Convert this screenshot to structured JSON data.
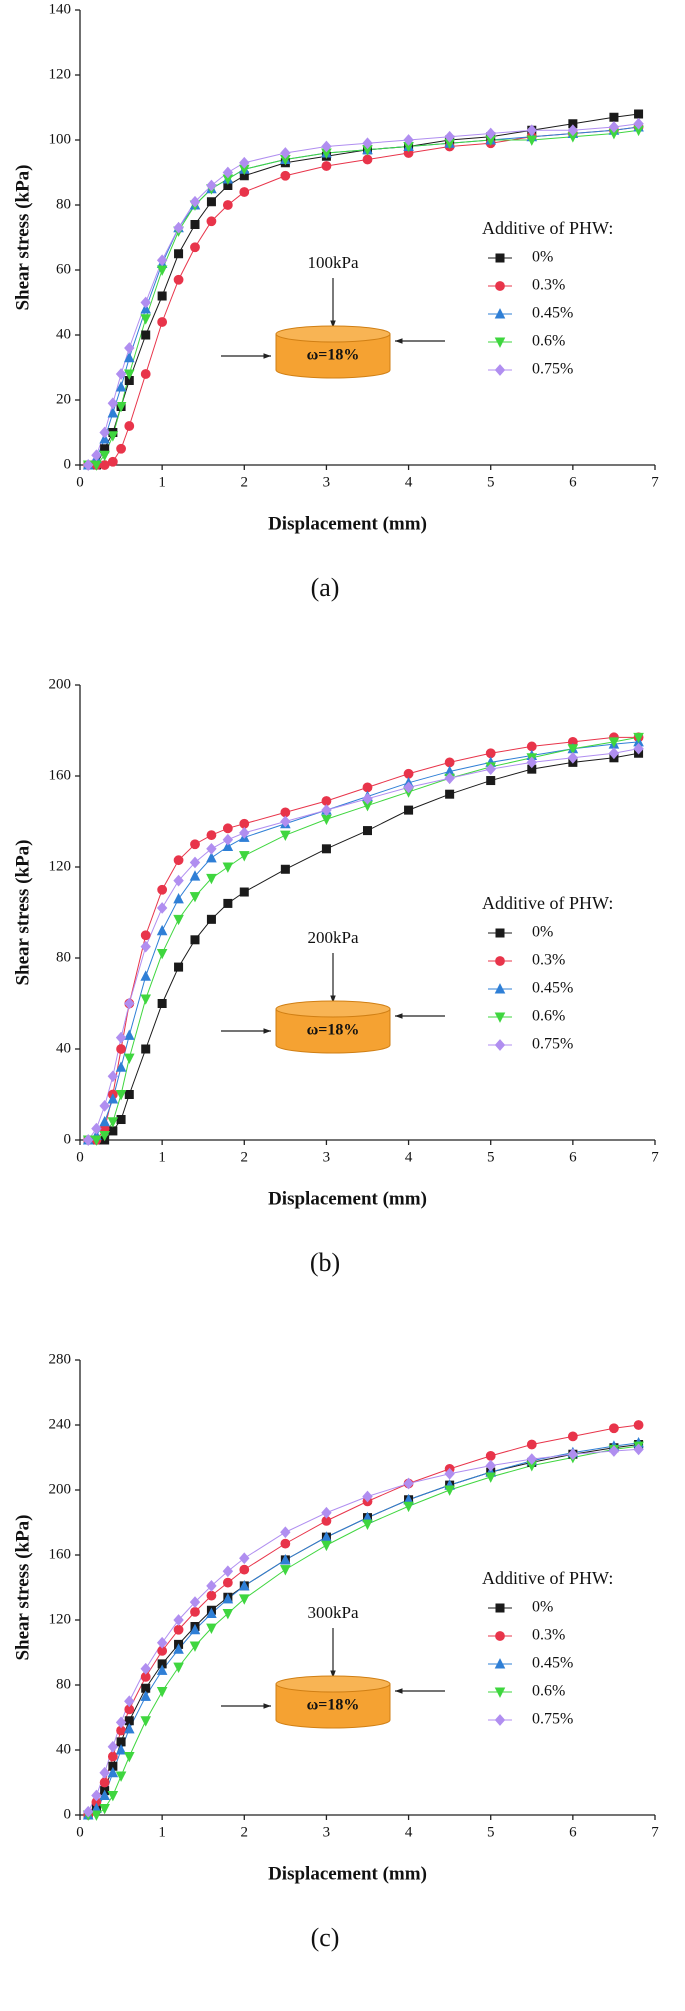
{
  "chart_data": [
    {
      "type": "line",
      "xlabel": "Displacement (mm)",
      "ylabel": "Shear stress (kPa)",
      "caption": "(a)",
      "legend_title": "Additive of PHW:",
      "load_label": "100kPa",
      "moisture_label": "ω=18%",
      "xlim": [
        0,
        7
      ],
      "xticks": [
        0,
        1,
        2,
        3,
        4,
        5,
        6,
        7
      ],
      "ylim": [
        0,
        140
      ],
      "yticks": [
        0,
        20,
        40,
        60,
        80,
        100,
        120,
        140
      ],
      "x": [
        0.1,
        0.2,
        0.3,
        0.4,
        0.5,
        0.6,
        0.8,
        1.0,
        1.2,
        1.4,
        1.6,
        1.8,
        2,
        2.5,
        3,
        3.5,
        4,
        4.5,
        5,
        5.5,
        6,
        6.5,
        6.8
      ],
      "series": [
        {
          "name": "0%",
          "color": "#1a1a1a",
          "marker": "square",
          "values": [
            0,
            0,
            5,
            10,
            18,
            26,
            40,
            52,
            65,
            74,
            81,
            86,
            89,
            93,
            95,
            97,
            98,
            100,
            101,
            103,
            105,
            107,
            108
          ]
        },
        {
          "name": "0.3%",
          "color": "#e8344a",
          "marker": "circle",
          "values": [
            0,
            0,
            0,
            1,
            5,
            12,
            28,
            44,
            57,
            67,
            75,
            80,
            84,
            89,
            92,
            94,
            96,
            98,
            99,
            101,
            102,
            103,
            104
          ]
        },
        {
          "name": "0.45%",
          "color": "#2f7fd6",
          "marker": "triangle",
          "values": [
            0,
            2,
            8,
            16,
            24,
            33,
            48,
            62,
            73,
            80,
            85,
            88,
            91,
            94,
            96,
            97,
            98,
            99,
            100,
            101,
            102,
            103,
            104
          ]
        },
        {
          "name": "0.6%",
          "color": "#3fd63f",
          "marker": "triangle-down",
          "values": [
            0,
            0,
            3,
            9,
            18,
            28,
            45,
            60,
            72,
            80,
            85,
            88,
            91,
            94,
            96,
            97,
            98,
            99,
            100,
            100,
            101,
            102,
            103
          ]
        },
        {
          "name": "0.75%",
          "color": "#b08ef0",
          "marker": "diamond",
          "values": [
            0,
            3,
            10,
            19,
            28,
            36,
            50,
            63,
            73,
            81,
            86,
            90,
            93,
            96,
            98,
            99,
            100,
            101,
            102,
            103,
            103,
            104,
            105
          ]
        }
      ]
    },
    {
      "type": "line",
      "xlabel": "Displacement (mm)",
      "ylabel": "Shear stress (kPa)",
      "caption": "(b)",
      "legend_title": "Additive of PHW:",
      "load_label": "200kPa",
      "moisture_label": "ω=18%",
      "xlim": [
        0,
        7
      ],
      "xticks": [
        0,
        1,
        2,
        3,
        4,
        5,
        6,
        7
      ],
      "ylim": [
        0,
        200
      ],
      "yticks": [
        0,
        40,
        80,
        120,
        160,
        200
      ],
      "x": [
        0.1,
        0.2,
        0.3,
        0.4,
        0.5,
        0.6,
        0.8,
        1.0,
        1.2,
        1.4,
        1.6,
        1.8,
        2,
        2.5,
        3,
        3.5,
        4,
        4.5,
        5,
        5.5,
        6,
        6.5,
        6.8
      ],
      "series": [
        {
          "name": "0%",
          "color": "#1a1a1a",
          "marker": "square",
          "values": [
            0,
            0,
            0,
            4,
            9,
            20,
            40,
            60,
            76,
            88,
            97,
            104,
            109,
            119,
            128,
            136,
            145,
            152,
            158,
            163,
            166,
            168,
            170
          ]
        },
        {
          "name": "0.3%",
          "color": "#e8344a",
          "marker": "circle",
          "values": [
            0,
            0,
            5,
            20,
            40,
            60,
            90,
            110,
            123,
            130,
            134,
            137,
            139,
            144,
            149,
            155,
            161,
            166,
            170,
            173,
            175,
            177,
            177
          ]
        },
        {
          "name": "0.45%",
          "color": "#2f7fd6",
          "marker": "triangle",
          "values": [
            0,
            2,
            8,
            18,
            32,
            46,
            72,
            92,
            106,
            116,
            124,
            129,
            133,
            139,
            145,
            151,
            157,
            162,
            166,
            169,
            172,
            174,
            175
          ]
        },
        {
          "name": "0.6%",
          "color": "#3fd63f",
          "marker": "triangle-down",
          "values": [
            0,
            0,
            2,
            8,
            20,
            36,
            62,
            82,
            97,
            107,
            115,
            120,
            125,
            134,
            141,
            147,
            153,
            159,
            164,
            168,
            172,
            175,
            177
          ]
        },
        {
          "name": "0.75%",
          "color": "#b08ef0",
          "marker": "diamond",
          "values": [
            0,
            5,
            15,
            28,
            45,
            60,
            85,
            102,
            114,
            122,
            128,
            132,
            135,
            140,
            145,
            150,
            155,
            159,
            163,
            166,
            168,
            170,
            172
          ]
        }
      ]
    },
    {
      "type": "line",
      "xlabel": "Displacement (mm)",
      "ylabel": "Shear stress (kPa)",
      "caption": "(c)",
      "legend_title": "Additive of PHW:",
      "load_label": "300kPa",
      "moisture_label": "ω=18%",
      "xlim": [
        0,
        7
      ],
      "xticks": [
        0,
        1,
        2,
        3,
        4,
        5,
        6,
        7
      ],
      "ylim": [
        0,
        280
      ],
      "yticks": [
        0,
        40,
        80,
        120,
        160,
        200,
        240,
        280
      ],
      "x": [
        0.1,
        0.2,
        0.3,
        0.4,
        0.5,
        0.6,
        0.8,
        1.0,
        1.2,
        1.4,
        1.6,
        1.8,
        2,
        2.5,
        3,
        3.5,
        4,
        4.5,
        5,
        5.5,
        6,
        6.5,
        6.8
      ],
      "series": [
        {
          "name": "0%",
          "color": "#1a1a1a",
          "marker": "square",
          "values": [
            0,
            5,
            15,
            30,
            45,
            58,
            78,
            93,
            105,
            116,
            126,
            134,
            141,
            157,
            171,
            183,
            194,
            203,
            211,
            217,
            222,
            226,
            228
          ]
        },
        {
          "name": "0.3%",
          "color": "#e8344a",
          "marker": "circle",
          "values": [
            0,
            8,
            20,
            36,
            52,
            65,
            85,
            101,
            114,
            125,
            135,
            143,
            151,
            167,
            181,
            193,
            204,
            213,
            221,
            228,
            233,
            238,
            240
          ]
        },
        {
          "name": "0.45%",
          "color": "#2f7fd6",
          "marker": "triangle",
          "values": [
            0,
            4,
            12,
            26,
            40,
            53,
            73,
            89,
            102,
            114,
            124,
            133,
            141,
            157,
            171,
            183,
            194,
            203,
            211,
            218,
            223,
            227,
            229
          ]
        },
        {
          "name": "0.6%",
          "color": "#3fd63f",
          "marker": "triangle-down",
          "values": [
            0,
            0,
            4,
            12,
            24,
            36,
            58,
            76,
            91,
            104,
            115,
            124,
            133,
            151,
            166,
            179,
            190,
            200,
            208,
            215,
            220,
            225,
            227
          ]
        },
        {
          "name": "0.75%",
          "color": "#b08ef0",
          "marker": "diamond",
          "values": [
            2,
            12,
            26,
            42,
            57,
            70,
            90,
            106,
            120,
            131,
            141,
            150,
            158,
            174,
            186,
            196,
            204,
            210,
            215,
            219,
            222,
            224,
            225
          ]
        }
      ]
    }
  ]
}
